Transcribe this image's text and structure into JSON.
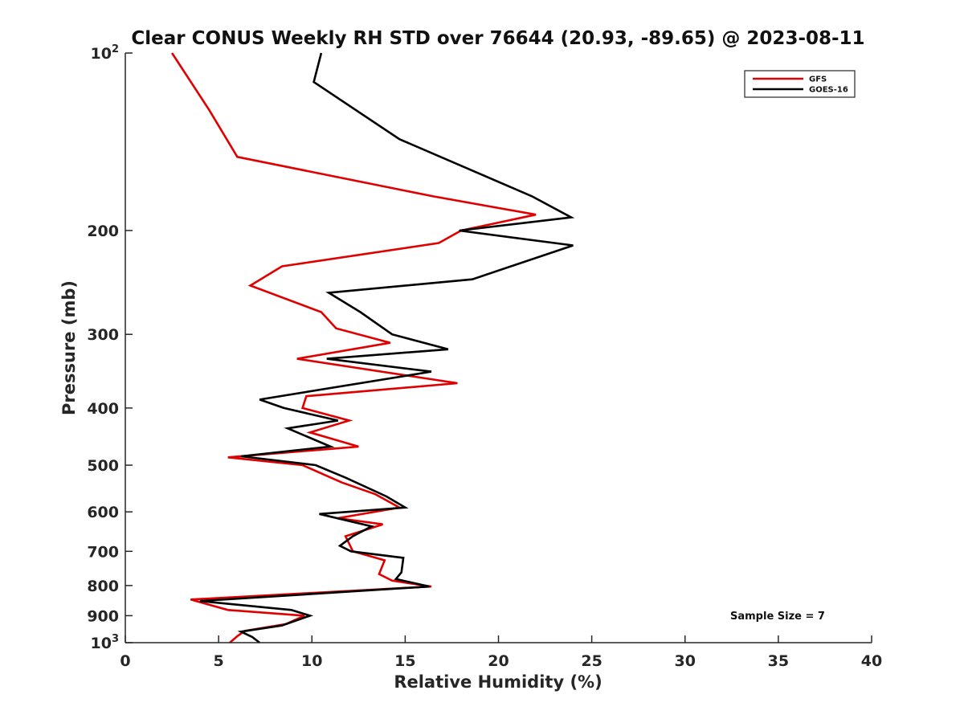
{
  "chart_data": {
    "type": "line",
    "title": "Clear CONUS Weekly RH STD over 76644 (20.93, -89.65) @ 2023-08-11",
    "xlabel": "Relative Humidity (%)",
    "ylabel": "Pressure (mb)",
    "xlim": [
      0,
      40
    ],
    "ylim": [
      1000,
      100
    ],
    "yscale": "log",
    "y_reversed": true,
    "x_ticks": [
      0,
      5,
      10,
      15,
      20,
      25,
      30,
      35,
      40
    ],
    "x_tick_labels": [
      "0",
      "5",
      "10",
      "15",
      "20",
      "25",
      "30",
      "35",
      "40"
    ],
    "y_ticks": [
      {
        "value": 100,
        "base": "10",
        "exp": "2"
      },
      {
        "value": 200,
        "label": "200"
      },
      {
        "value": 300,
        "label": "300"
      },
      {
        "value": 400,
        "label": "400"
      },
      {
        "value": 500,
        "label": "500"
      },
      {
        "value": 600,
        "label": "600"
      },
      {
        "value": 700,
        "label": "700"
      },
      {
        "value": 800,
        "label": "800"
      },
      {
        "value": 900,
        "label": "900"
      },
      {
        "value": 1000,
        "base": "10",
        "exp": "3"
      }
    ],
    "grid": false,
    "legend_position": "top-right",
    "annotation": "Sample Size = 7",
    "series": [
      {
        "name": "GFS",
        "color": "#e00000",
        "points": [
          [
            2.5,
            100
          ],
          [
            4.5,
            125
          ],
          [
            6.0,
            150
          ],
          [
            16.5,
            175
          ],
          [
            22.0,
            188
          ],
          [
            18.0,
            200
          ],
          [
            16.8,
            210
          ],
          [
            8.4,
            230
          ],
          [
            6.7,
            248
          ],
          [
            10.5,
            275
          ],
          [
            11.3,
            293
          ],
          [
            14.2,
            310
          ],
          [
            9.2,
            330
          ],
          [
            17.8,
            363
          ],
          [
            9.7,
            382
          ],
          [
            9.5,
            400
          ],
          [
            12.0,
            420
          ],
          [
            9.9,
            440
          ],
          [
            12.5,
            465
          ],
          [
            5.5,
            485
          ],
          [
            9.5,
            500
          ],
          [
            11.6,
            535
          ],
          [
            13.4,
            560
          ],
          [
            14.7,
            590
          ],
          [
            11.4,
            615
          ],
          [
            13.8,
            630
          ],
          [
            11.8,
            660
          ],
          [
            12.2,
            700
          ],
          [
            13.9,
            725
          ],
          [
            13.6,
            765
          ],
          [
            14.3,
            785
          ],
          [
            16.4,
            803
          ],
          [
            3.5,
            845
          ],
          [
            5.5,
            880
          ],
          [
            9.6,
            900
          ],
          [
            8.6,
            930
          ],
          [
            6.4,
            955
          ],
          [
            6.0,
            975
          ],
          [
            5.6,
            1000
          ]
        ]
      },
      {
        "name": "GOES-16",
        "color": "#000000",
        "points": [
          [
            10.5,
            100
          ],
          [
            10.1,
            112
          ],
          [
            14.7,
            140
          ],
          [
            21.8,
            175
          ],
          [
            23.9,
            190
          ],
          [
            17.9,
            200
          ],
          [
            24.0,
            212
          ],
          [
            18.6,
            242
          ],
          [
            10.9,
            255
          ],
          [
            12.6,
            275
          ],
          [
            14.3,
            300
          ],
          [
            17.3,
            318
          ],
          [
            10.8,
            330
          ],
          [
            16.4,
            347
          ],
          [
            7.2,
            387
          ],
          [
            8.5,
            400
          ],
          [
            11.4,
            420
          ],
          [
            8.7,
            433
          ],
          [
            11.0,
            465
          ],
          [
            6.2,
            483
          ],
          [
            10.2,
            500
          ],
          [
            11.8,
            525
          ],
          [
            14.0,
            565
          ],
          [
            15.0,
            590
          ],
          [
            10.4,
            605
          ],
          [
            13.2,
            635
          ],
          [
            12.2,
            660
          ],
          [
            11.5,
            685
          ],
          [
            12.1,
            700
          ],
          [
            14.9,
            718
          ],
          [
            14.8,
            760
          ],
          [
            14.5,
            780
          ],
          [
            16.3,
            803
          ],
          [
            4.0,
            850
          ],
          [
            8.9,
            880
          ],
          [
            9.9,
            900
          ],
          [
            8.4,
            935
          ],
          [
            6.2,
            958
          ],
          [
            6.8,
            978
          ],
          [
            7.2,
            1000
          ]
        ]
      }
    ]
  }
}
